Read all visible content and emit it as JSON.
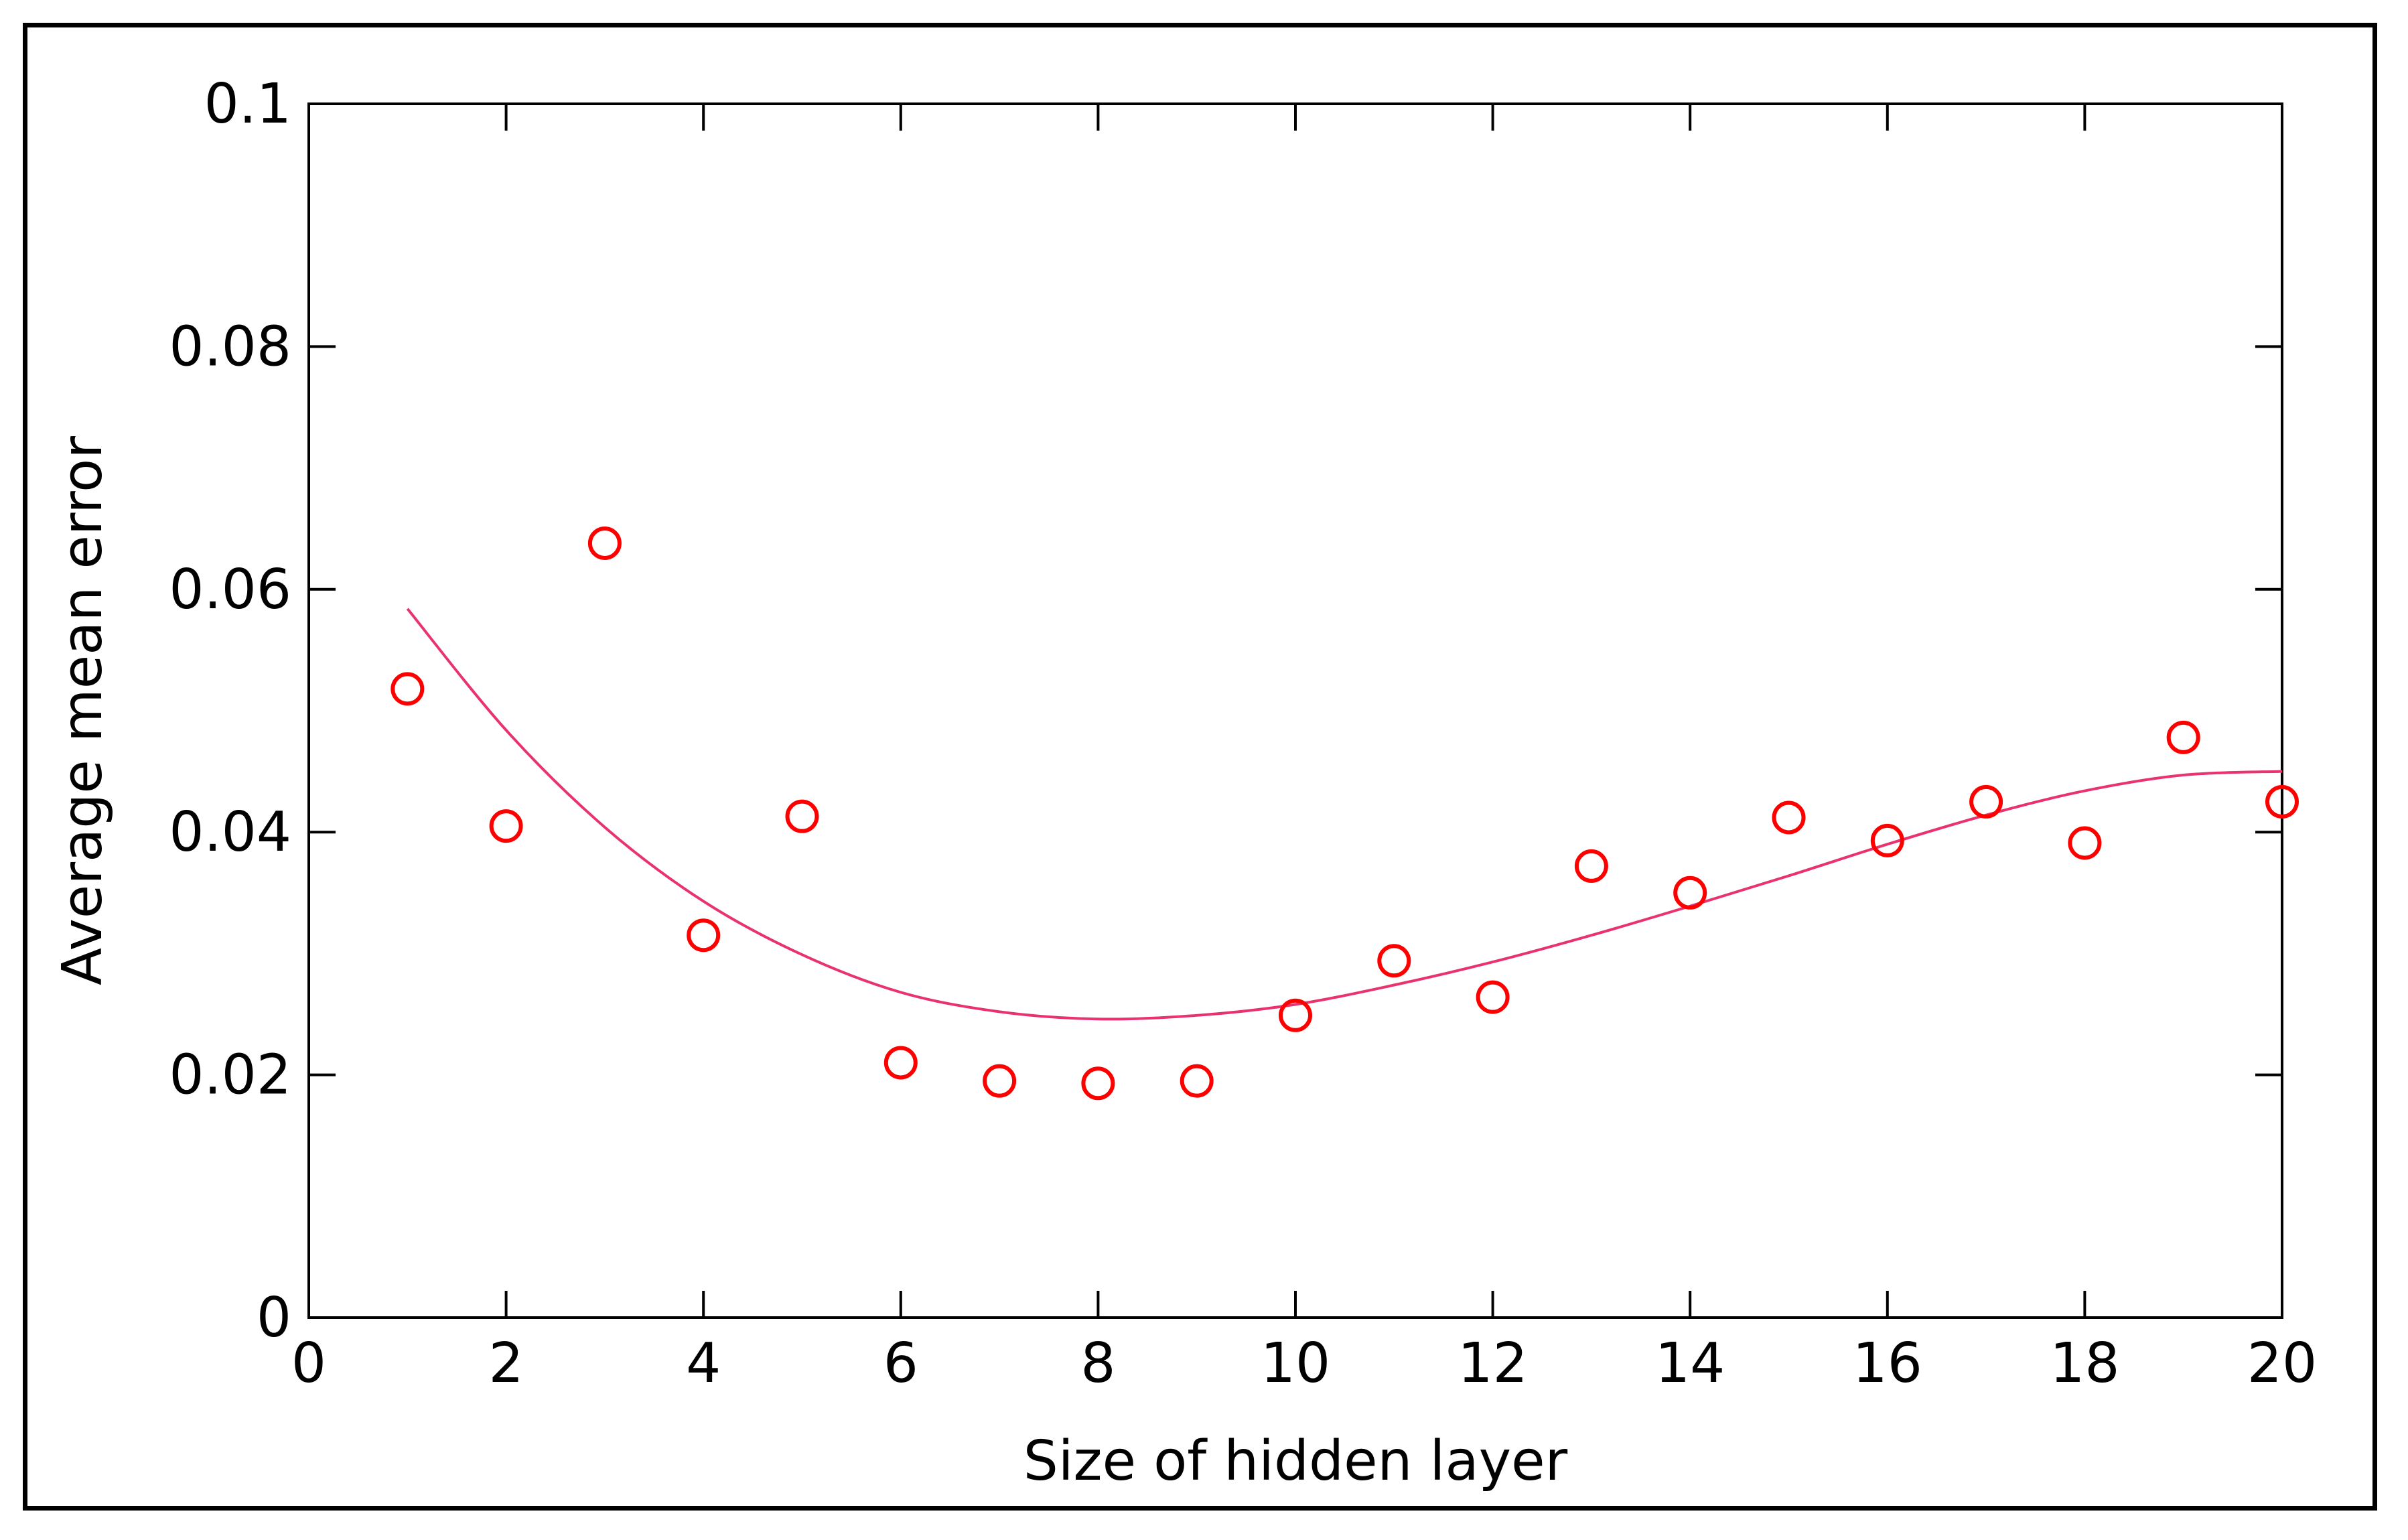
{
  "chart_data": {
    "type": "scatter",
    "title": "",
    "xlabel": "Size of hidden layer",
    "ylabel": "Average mean error",
    "xlim": [
      0,
      20
    ],
    "ylim": [
      0,
      0.1
    ],
    "x_ticks": [
      "0",
      "2",
      "4",
      "6",
      "8",
      "10",
      "12",
      "14",
      "16",
      "18",
      "20"
    ],
    "y_ticks": [
      "0",
      "0.02",
      "0.04",
      "0.06",
      "0.08",
      "0.1"
    ],
    "grid": false,
    "legend": "none",
    "marker_color": "#ff0000",
    "fit_color": "#e8336e",
    "series": [
      {
        "kind": "points",
        "x": [
          1,
          2,
          3,
          4,
          5,
          6,
          7,
          8,
          9,
          10,
          11,
          12,
          13,
          14,
          15,
          16,
          17,
          18,
          19,
          20
        ],
        "y": [
          0.0518,
          0.0405,
          0.0638,
          0.0315,
          0.0413,
          0.021,
          0.0195,
          0.0193,
          0.0195,
          0.0249,
          0.0294,
          0.0264,
          0.0372,
          0.035,
          0.0412,
          0.0393,
          0.0425,
          0.0391,
          0.0478,
          0.0425
        ]
      },
      {
        "kind": "fit-curve",
        "x": [
          1,
          2,
          3,
          4,
          5,
          6,
          7,
          8,
          9,
          10,
          11,
          12,
          13,
          14,
          15,
          16,
          17,
          18,
          19,
          20
        ],
        "y": [
          0.0584,
          0.0484,
          0.0404,
          0.0343,
          0.0299,
          0.0268,
          0.0252,
          0.0246,
          0.0249,
          0.0258,
          0.0274,
          0.0293,
          0.0315,
          0.0339,
          0.0364,
          0.039,
          0.0414,
          0.0434,
          0.0447,
          0.045
        ]
      }
    ]
  }
}
